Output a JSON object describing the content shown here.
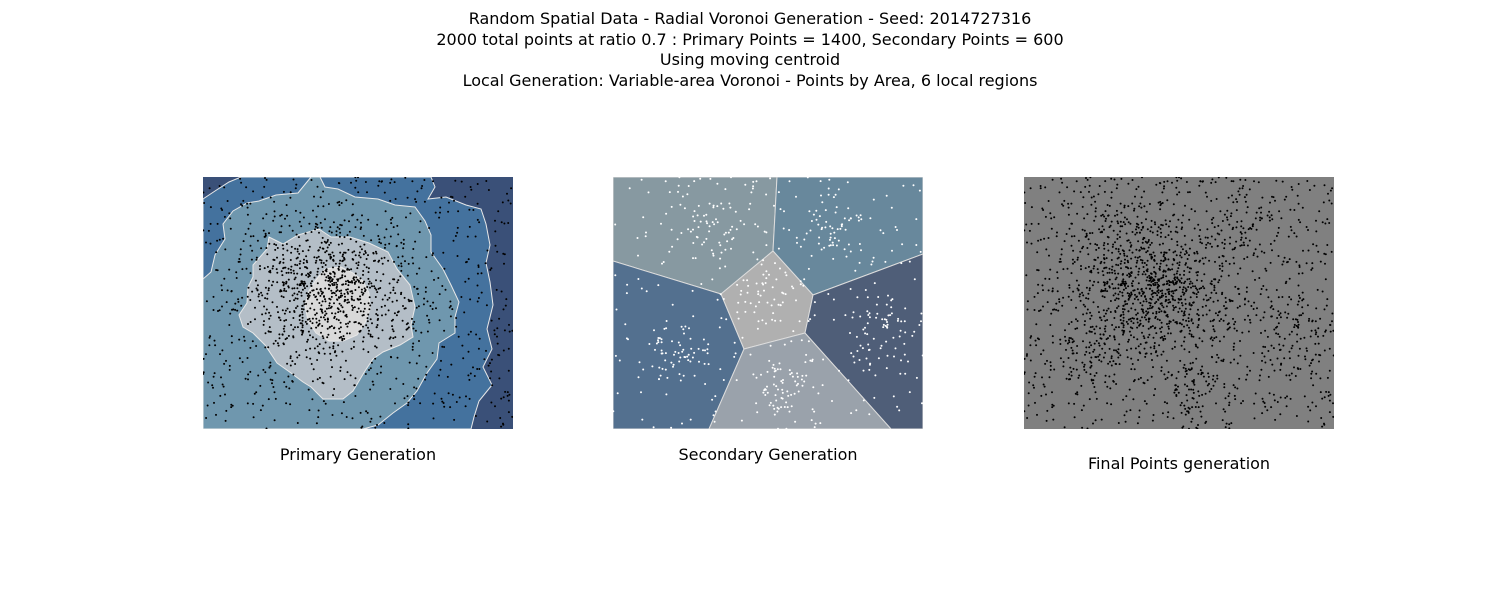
{
  "figure": {
    "title_lines": [
      "Random Spatial Data - Radial Voronoi Generation - Seed: 2014727316",
      "2000 total points at ratio 0.7 : Primary Points = 1400, Secondary Points = 600",
      "Using moving centroid",
      "Local Generation: Variable-area Voronoi - Points by Area, 6 local regions"
    ]
  },
  "chart_data": [
    {
      "type": "scatter",
      "caption": "Primary Generation",
      "point_count": 1400,
      "point_color": "#000000",
      "background_colors": [
        "#3a5078",
        "#44729e",
        "#6f97ae",
        "#b4bec7",
        "#d9d9d9"
      ],
      "edge_color": "#e8e8e8",
      "x_range": [
        0,
        1
      ],
      "y_range": [
        0,
        1
      ],
      "axes_visible": false,
      "grid": false
    },
    {
      "type": "scatter",
      "caption": "Secondary Generation",
      "point_count": 600,
      "point_color": "#ffffff",
      "regions": 6,
      "region_colors": [
        "#8799a1",
        "#68889c",
        "#53708f",
        "#b0b0b0",
        "#4f5e78",
        "#9aa2ab"
      ],
      "edge_color": "#dcdcdc",
      "x_range": [
        0,
        1
      ],
      "y_range": [
        0,
        1
      ],
      "axes_visible": false,
      "grid": false
    },
    {
      "type": "scatter",
      "caption": "Final Points generation",
      "point_count": 2000,
      "point_color": "#000000",
      "background_color": "#808080",
      "x_range": [
        0,
        1
      ],
      "y_range": [
        0,
        1
      ],
      "axes_visible": false,
      "grid": false
    }
  ]
}
